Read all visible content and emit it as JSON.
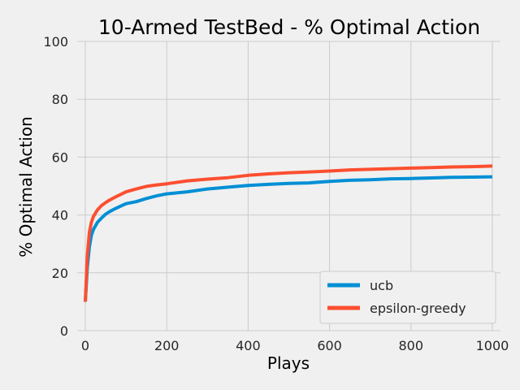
{
  "chart_data": {
    "type": "line",
    "title": "10-Armed TestBed - % Optimal Action",
    "xlabel": "Plays",
    "ylabel": "% Optimal Action",
    "xlim": [
      -20,
      1020
    ],
    "ylim": [
      0,
      100
    ],
    "xticks": [
      0,
      200,
      400,
      600,
      800,
      1000
    ],
    "yticks": [
      0,
      20,
      40,
      60,
      80,
      100
    ],
    "grid": true,
    "legend_position": "lower-right",
    "background": "#f0f0f0",
    "series": [
      {
        "name": "ucb",
        "color": "#008fd5",
        "x": [
          0,
          5,
          10,
          15,
          20,
          30,
          40,
          50,
          60,
          75,
          90,
          100,
          125,
          150,
          175,
          200,
          250,
          300,
          350,
          400,
          450,
          500,
          550,
          600,
          650,
          700,
          750,
          800,
          850,
          900,
          950,
          1000
        ],
        "y": [
          10,
          22,
          29,
          33,
          35,
          37.5,
          39,
          40.3,
          41.2,
          42.3,
          43.3,
          43.9,
          44.6,
          45.7,
          46.6,
          47.3,
          48,
          49,
          49.6,
          50.2,
          50.6,
          50.9,
          51.1,
          51.6,
          52,
          52.2,
          52.5,
          52.6,
          52.8,
          53,
          53.1,
          53.2
        ]
      },
      {
        "name": "epsilon-greedy",
        "color": "#fc4f30",
        "x": [
          0,
          5,
          10,
          15,
          20,
          30,
          40,
          50,
          60,
          75,
          90,
          100,
          125,
          150,
          175,
          200,
          250,
          300,
          350,
          400,
          450,
          500,
          550,
          600,
          650,
          700,
          750,
          800,
          850,
          900,
          950,
          1000
        ],
        "y": [
          10,
          26,
          34,
          37.5,
          39.5,
          41.8,
          43.3,
          44.3,
          45.2,
          46.3,
          47.3,
          48,
          49,
          49.9,
          50.4,
          50.8,
          51.8,
          52.4,
          52.9,
          53.7,
          54.2,
          54.6,
          54.9,
          55.2,
          55.6,
          55.8,
          56,
          56.2,
          56.4,
          56.6,
          56.7,
          56.9
        ]
      }
    ]
  }
}
